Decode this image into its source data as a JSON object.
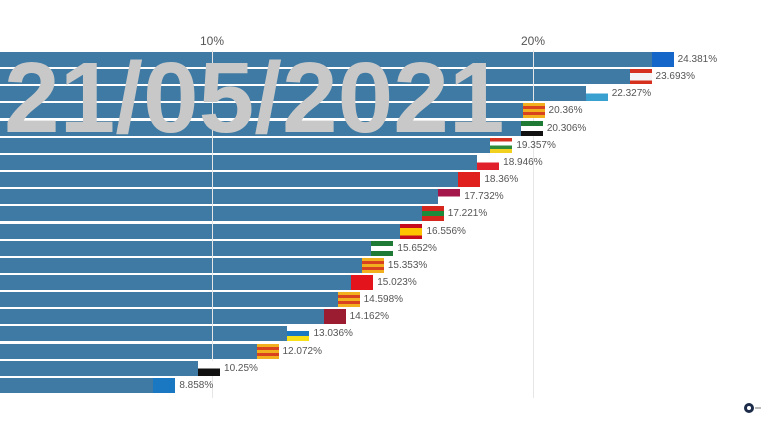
{
  "chart_data": {
    "type": "bar",
    "orientation": "horizontal",
    "title": "",
    "date": "21/05/2021",
    "xlabel": "",
    "ylabel": "",
    "x_ticks": [
      "10%",
      "20%"
    ],
    "tick_values": [
      10,
      20
    ],
    "grid": true,
    "bar_color": "#3e7aa3",
    "values": [
      24.381,
      23.693,
      22.327,
      20.36,
      20.306,
      19.357,
      18.946,
      18.36,
      17.732,
      17.221,
      16.556,
      15.652,
      15.353,
      15.023,
      14.598,
      14.162,
      13.036,
      12.072,
      10.25,
      8.858
    ],
    "labels": [
      "24.381%",
      "23.693%",
      "22.327%",
      "20.36%",
      "20.306%",
      "19.357%",
      "18.946%",
      "18.36%",
      "17.732%",
      "17.221%",
      "16.556%",
      "15.652%",
      "15.353%",
      "15.023%",
      "14.598%",
      "14.162%",
      "13.036%",
      "12.072%",
      "10.25%",
      "8.858%"
    ],
    "flags": [
      {
        "icon": "asturias-flag-icon",
        "colors": [
          "#1466c8"
        ]
      },
      {
        "icon": "castilla-leon-flag-icon",
        "colors": [
          "#d6301f",
          "#f4f4f4",
          "#f4f4f4",
          "#d6301f"
        ]
      },
      {
        "icon": "galicia-flag-icon",
        "colors": [
          "#ffffff",
          "#3aa0d0"
        ]
      },
      {
        "icon": "aragon-flag-icon",
        "colors": [
          "#f2b01e",
          "#d9421e",
          "#f2b01e",
          "#d9421e",
          "#f2b01e"
        ]
      },
      {
        "icon": "extremadura-flag-icon",
        "colors": [
          "#1f7a35",
          "#ffffff",
          "#111111"
        ]
      },
      {
        "icon": "la-rioja-flag-icon",
        "colors": [
          "#d6301f",
          "#ffffff",
          "#2e8b3a",
          "#f2d01e"
        ]
      },
      {
        "icon": "cantabria-flag-icon",
        "colors": [
          "#ffffff",
          "#e0202a"
        ]
      },
      {
        "icon": "navarra-flag-icon",
        "colors": [
          "#e0201c"
        ]
      },
      {
        "icon": "castilla-la-mancha-flag-icon",
        "colors": [
          "#a3174a",
          "#ffffff"
        ]
      },
      {
        "icon": "pais-vasco-flag-icon",
        "colors": [
          "#d4261c",
          "#1b8a3a",
          "#d4261c"
        ]
      },
      {
        "icon": "spain-flag-icon",
        "colors": [
          "#c60b1e",
          "#ffc400",
          "#ffc400",
          "#c60b1e"
        ]
      },
      {
        "icon": "andalucia-flag-icon",
        "colors": [
          "#1f7a35",
          "#ffffff",
          "#1f7a35"
        ]
      },
      {
        "icon": "comunidad-valenciana-flag-icon",
        "colors": [
          "#f2b01e",
          "#d9421e",
          "#f2b01e",
          "#d9421e",
          "#f2b01e"
        ]
      },
      {
        "icon": "madrid-flag-icon",
        "colors": [
          "#e3141c"
        ]
      },
      {
        "icon": "cataluna-flag-icon",
        "colors": [
          "#f2b01e",
          "#d9421e",
          "#f2b01e",
          "#d9421e",
          "#f2b01e"
        ]
      },
      {
        "icon": "murcia-flag-icon",
        "colors": [
          "#9b1b30"
        ]
      },
      {
        "icon": "canarias-flag-icon",
        "colors": [
          "#ffffff",
          "#1a78c2",
          "#f7e017"
        ]
      },
      {
        "icon": "baleares-flag-icon",
        "colors": [
          "#f2b01e",
          "#d9421e",
          "#f2b01e",
          "#d9421e",
          "#f2b01e"
        ]
      },
      {
        "icon": "ceuta-flag-icon",
        "colors": [
          "#ffffff",
          "#111111"
        ]
      },
      {
        "icon": "melilla-flag-icon",
        "colors": [
          "#1a78c2"
        ]
      }
    ]
  }
}
